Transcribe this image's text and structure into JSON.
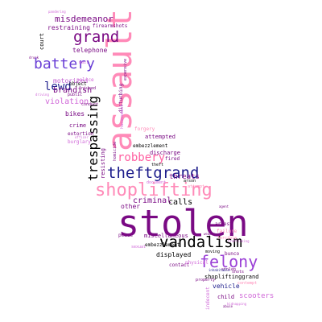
{
  "title": "",
  "words": [
    {
      "text": "stolen",
      "color": "#7a0a84"
    },
    {
      "text": "assault",
      "color": "#ff8ab8"
    },
    {
      "text": "shoplifting",
      "color": "#ff8ab8"
    },
    {
      "text": "vandalism",
      "color": "#000000"
    },
    {
      "text": "felony",
      "color": "#9a3fd6"
    },
    {
      "text": "theftgrand",
      "color": "#1e1e8c"
    },
    {
      "text": "trespassing",
      "color": "#000000"
    },
    {
      "text": "grand",
      "color": "#7a0a84"
    },
    {
      "text": "battery",
      "color": "#6a3fd6"
    },
    {
      "text": "misdemeanor",
      "color": "#7a0a84"
    },
    {
      "text": "robbery",
      "color": "#ff5fa0"
    },
    {
      "text": "lewd",
      "color": "#1e1e8c"
    },
    {
      "text": "brandish",
      "color": "#7a0a84"
    },
    {
      "text": "violation",
      "color": "#d067d8"
    },
    {
      "text": "motorized",
      "color": "#c05fd0"
    },
    {
      "text": "restraining",
      "color": "#7a0a84"
    },
    {
      "text": "telephone",
      "color": "#7a0a84"
    },
    {
      "text": "court",
      "color": "#000000"
    },
    {
      "text": "firearmshots",
      "color": "#7a0a84"
    },
    {
      "text": "threats",
      "color": "#7a0a84"
    },
    {
      "text": "calls",
      "color": "#000000"
    },
    {
      "text": "criminal",
      "color": "#7a0a84"
    },
    {
      "text": "other",
      "color": "#7a0a84"
    },
    {
      "text": "bikes",
      "color": "#7a0a84"
    },
    {
      "text": "crime",
      "color": "#7a0a84"
    },
    {
      "text": "extortion",
      "color": "#7a0a84"
    },
    {
      "text": "burglary",
      "color": "#d067d8"
    },
    {
      "text": "forgery",
      "color": "#ff8ab8"
    },
    {
      "text": "attempted",
      "color": "#7a0a84"
    },
    {
      "text": "embezzlement",
      "color": "#000000"
    },
    {
      "text": "displayed",
      "color": "#000000"
    },
    {
      "text": "shopliftinggrand",
      "color": "#000000"
    },
    {
      "text": "vehicle",
      "color": "#1e1e8c"
    },
    {
      "text": "scooters",
      "color": "#d067d8"
    },
    {
      "text": "miscellaneous",
      "color": "#7a0a84"
    },
    {
      "text": "peace",
      "color": "#7a0a84"
    },
    {
      "text": "embezzlement",
      "color": "#000000"
    },
    {
      "text": "discharge",
      "color": "#7a0a84"
    },
    {
      "text": "fired",
      "color": "#7a0a84"
    },
    {
      "text": "theft",
      "color": "#000000"
    },
    {
      "text": "resisting",
      "color": "#7a0a84"
    },
    {
      "text": "arrest",
      "color": "#7a0a84"
    },
    {
      "text": "failure",
      "color": "#ff8ab8"
    },
    {
      "text": "forcible",
      "color": "#ff8ab8"
    },
    {
      "text": "moving",
      "color": "#000000"
    },
    {
      "text": "bunco",
      "color": "#7a0a84"
    },
    {
      "text": "sexual",
      "color": "#d067d8"
    },
    {
      "text": "contact",
      "color": "#7a0a84"
    },
    {
      "text": "physical",
      "color": "#d067d8"
    },
    {
      "text": "child",
      "color": "#7a0a84"
    },
    {
      "text": "contempt",
      "color": "#ff8ab8"
    },
    {
      "text": "document",
      "color": "#d067d8"
    },
    {
      "text": "attempt",
      "color": "#ff8ab8"
    },
    {
      "text": "arson",
      "color": "#000000"
    },
    {
      "text": "police",
      "color": "#d067d8"
    },
    {
      "text": "object",
      "color": "#000000"
    },
    {
      "text": "injured",
      "color": "#7a0a84"
    },
    {
      "text": "public",
      "color": "#7a0a84"
    },
    {
      "text": "disturbing",
      "color": "#7a0a84"
    },
    {
      "text": "expensive",
      "color": "#7a0a84"
    },
    {
      "text": "harassment",
      "color": "#d067d8"
    },
    {
      "text": "indecent",
      "color": "#d067d8"
    },
    {
      "text": "kidnapping",
      "color": "#d067d8"
    },
    {
      "text": "homicide",
      "color": "#7a0a84"
    },
    {
      "text": "property",
      "color": "#7a0a84"
    },
    {
      "text": "conduct",
      "color": "#7a0a84"
    },
    {
      "text": "agent",
      "color": "#7a0a84"
    },
    {
      "text": "trafficking",
      "color": "#d067d8"
    },
    {
      "text": "abuse",
      "color": "#7a0a84"
    },
    {
      "text": "mail",
      "color": "#d067d8"
    },
    {
      "text": "weapon",
      "color": "#7a0a84"
    },
    {
      "text": "pandering",
      "color": "#d067d8"
    },
    {
      "text": "stolen",
      "color": "#7a0a84"
    },
    {
      "text": "officer",
      "color": "#d067d8"
    },
    {
      "text": "inhabitable",
      "color": "#1e1e8c"
    },
    {
      "text": "shots",
      "color": "#7a0a84"
    },
    {
      "text": "drunk",
      "color": "#7a0a84"
    },
    {
      "text": "driving",
      "color": "#d067d8"
    }
  ]
}
